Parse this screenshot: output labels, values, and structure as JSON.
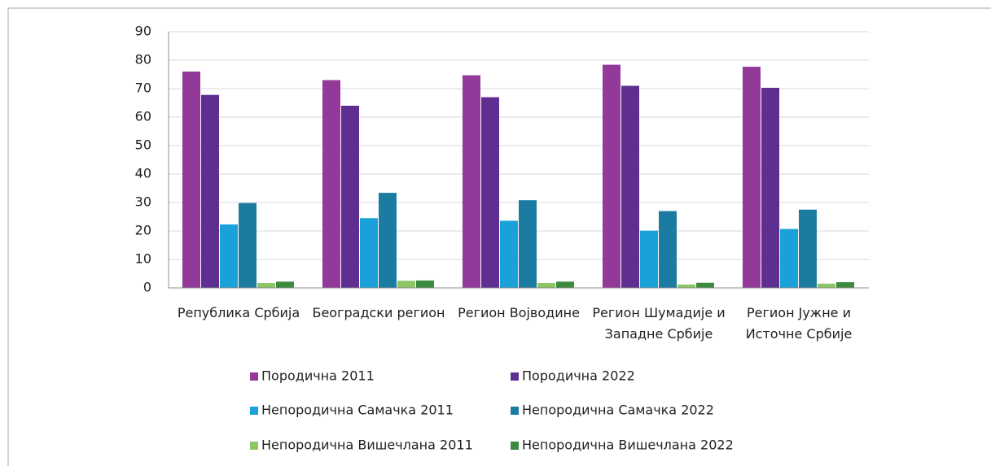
{
  "chart_data": {
    "type": "bar",
    "categories": [
      "Република Србија",
      "Београдски регион",
      "Регион Војводине",
      "Регион Шумадије и Западне Србије",
      "Регион Јужне и Источне Србије"
    ],
    "series": [
      {
        "name": "Породична 2011",
        "color": "#93399a",
        "values": [
          76,
          73,
          74.7,
          78.4,
          77.7
        ]
      },
      {
        "name": "Породична 2022",
        "color": "#5e2e91",
        "values": [
          67.8,
          64,
          67,
          71,
          70.3
        ]
      },
      {
        "name": "Непородична Самачка 2011",
        "color": "#1ba1d9",
        "values": [
          22.3,
          24.5,
          23.6,
          20.1,
          20.7
        ]
      },
      {
        "name": "Непородична Самачка 2022",
        "color": "#1b7ba0",
        "values": [
          29.8,
          33.4,
          30.8,
          27,
          27.5
        ]
      },
      {
        "name": "Непородична Вишечлана 2011",
        "color": "#8dc665",
        "values": [
          1.7,
          2.5,
          1.7,
          1.2,
          1.5
        ]
      },
      {
        "name": "Непородична Вишечлана 2022",
        "color": "#3b8a3e",
        "values": [
          2.2,
          2.6,
          2.2,
          1.8,
          2
        ]
      }
    ],
    "ylim": [
      0,
      90
    ],
    "yticks": [
      0,
      10,
      20,
      30,
      40,
      50,
      60,
      70,
      80,
      90
    ],
    "grid": true,
    "legend": "bottom"
  }
}
